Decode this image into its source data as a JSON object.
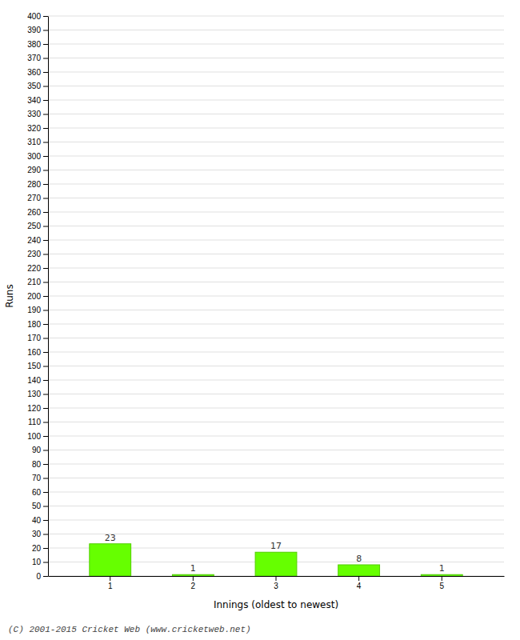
{
  "chart_data": {
    "type": "bar",
    "categories": [
      1,
      2,
      3,
      4,
      5
    ],
    "values": [
      23,
      1,
      17,
      8,
      1
    ],
    "color": "#66ff00",
    "xlabel": "Innings (oldest to newest)",
    "ylabel": "Runs",
    "footnote": "(C) 2001-2015 Cricket Web (www.cricketweb.net)",
    "ylim": [
      0,
      400
    ],
    "yticks": [
      0,
      10,
      20,
      30,
      40,
      50,
      60,
      70,
      80,
      90,
      100,
      110,
      120,
      130,
      140,
      150,
      160,
      170,
      180,
      190,
      200,
      210,
      220,
      230,
      240,
      250,
      260,
      270,
      280,
      290,
      300,
      310,
      320,
      330,
      340,
      350,
      360,
      370,
      380,
      390,
      400
    ],
    "grid": true,
    "data_labels": true
  }
}
